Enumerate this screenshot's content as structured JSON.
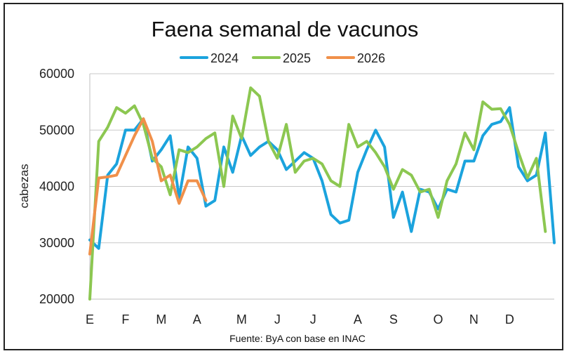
{
  "chart_data": {
    "type": "line",
    "title": "Faena semanal de vacunos",
    "ylabel": "cabezas",
    "xlabel": "",
    "source": "Fuente: ByA con base en INAC",
    "ylim": [
      20000,
      60000
    ],
    "yticks": [
      "20000",
      "30000",
      "40000",
      "50000",
      "60000"
    ],
    "y_tick_values": [
      20000,
      30000,
      40000,
      50000,
      60000
    ],
    "month_labels": [
      "E",
      "F",
      "M",
      "A",
      "M",
      "J",
      "J",
      "A",
      "S",
      "O",
      "N",
      "D"
    ],
    "month_label_weeks": [
      1,
      5,
      9,
      13,
      18,
      22,
      26,
      31,
      35,
      40,
      44,
      48
    ],
    "weeks_range": [
      1,
      53
    ],
    "grid": "horizontal",
    "legend_position": "top-center",
    "series": [
      {
        "name": "2024",
        "color": "#1ba3dd",
        "values": [
          30500,
          29000,
          42000,
          44000,
          50000,
          50000,
          52000,
          44500,
          46500,
          49000,
          38000,
          47000,
          45000,
          36500,
          37500,
          47000,
          42500,
          49000,
          45500,
          47000,
          48000,
          46500,
          43000,
          44500,
          46000,
          45000,
          41000,
          35000,
          33500,
          34000,
          42500,
          46500,
          50000,
          47000,
          34500,
          39000,
          32000,
          39500,
          39000,
          36000,
          39500,
          39000,
          44500,
          44500,
          49000,
          51000,
          51500,
          54000,
          43500,
          41000,
          42000,
          49500,
          30000
        ]
      },
      {
        "name": "2025",
        "color": "#8cc751",
        "values": [
          20000,
          48000,
          50500,
          54000,
          53000,
          54300,
          51000,
          45000,
          43500,
          38500,
          46500,
          46000,
          47000,
          48500,
          49500,
          40000,
          52500,
          48500,
          57500,
          56000,
          48000,
          45000,
          51000,
          42500,
          44500,
          45000,
          44000,
          41000,
          40000,
          51000,
          47000,
          48000,
          46000,
          43500,
          39500,
          43000,
          42000,
          39000,
          39500,
          34500,
          41000,
          44000,
          49500,
          46500,
          55000,
          53700,
          53800,
          51000,
          46000,
          41500,
          45000,
          32000
        ]
      },
      {
        "name": "2026",
        "color": "#f0904a",
        "values": [
          28000,
          41500,
          41700,
          42000,
          45500,
          49000,
          52000,
          48000,
          41000,
          42000,
          37000,
          41000,
          41000,
          37500
        ]
      }
    ]
  }
}
